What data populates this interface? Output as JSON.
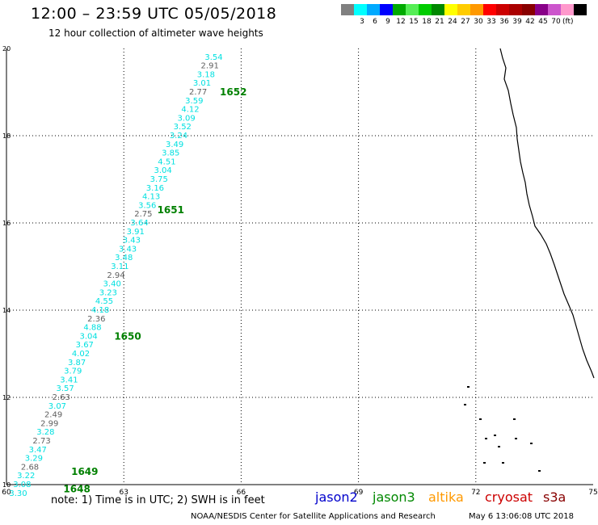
{
  "header": {
    "title": "12:00 – 23:59 UTC 05/05/2018",
    "subtitle": "12 hour collection of altimeter wave heights"
  },
  "legend": {
    "unit": "(ft)",
    "colors": [
      "#808080",
      "#00ffff",
      "#00aaff",
      "#0000ff",
      "#00aa00",
      "#55ee55",
      "#00cc00",
      "#008800",
      "#ffff00",
      "#ffcc00",
      "#ff9900",
      "#ff0000",
      "#cc0000",
      "#aa0000",
      "#880000",
      "#880088",
      "#cc55cc",
      "#ff99cc",
      "#000000"
    ],
    "labels": [
      "3",
      "6",
      "9",
      "12",
      "15",
      "18",
      "21",
      "24",
      "27",
      "30",
      "33",
      "36",
      "39",
      "42",
      "45",
      "70"
    ]
  },
  "chart_data": {
    "type": "scatter",
    "xlim": [
      60,
      75
    ],
    "ylim": [
      10,
      20
    ],
    "x_ticks": [
      "60",
      "63",
      "66",
      "69",
      "72",
      "75"
    ],
    "y_ticks": [
      "10",
      "12",
      "14",
      "16",
      "18",
      "20"
    ],
    "grid": true,
    "colors": {
      "cyan": "#00e0e0",
      "gray": "#606060",
      "track_label": "#008000"
    },
    "points": [
      {
        "x": 65.3,
        "y": 19.8,
        "v": "3.54",
        "c": "cyan"
      },
      {
        "x": 65.2,
        "y": 19.6,
        "v": "2.91",
        "c": "gray"
      },
      {
        "x": 65.1,
        "y": 19.4,
        "v": "3.18",
        "c": "cyan"
      },
      {
        "x": 65.0,
        "y": 19.2,
        "v": "3.01",
        "c": "cyan"
      },
      {
        "x": 64.9,
        "y": 19.0,
        "v": "2.77",
        "c": "gray"
      },
      {
        "x": 64.8,
        "y": 18.8,
        "v": "3.59",
        "c": "cyan"
      },
      {
        "x": 64.7,
        "y": 18.6,
        "v": "4.12",
        "c": "cyan"
      },
      {
        "x": 64.6,
        "y": 18.4,
        "v": "3.09",
        "c": "cyan"
      },
      {
        "x": 64.5,
        "y": 18.2,
        "v": "3.52",
        "c": "cyan"
      },
      {
        "x": 64.4,
        "y": 18.0,
        "v": "3.24",
        "c": "cyan"
      },
      {
        "x": 64.3,
        "y": 17.8,
        "v": "3.49",
        "c": "cyan"
      },
      {
        "x": 64.2,
        "y": 17.6,
        "v": "3.85",
        "c": "cyan"
      },
      {
        "x": 64.1,
        "y": 17.4,
        "v": "4.51",
        "c": "cyan"
      },
      {
        "x": 64.0,
        "y": 17.2,
        "v": "3.04",
        "c": "cyan"
      },
      {
        "x": 63.9,
        "y": 17.0,
        "v": "3.75",
        "c": "cyan"
      },
      {
        "x": 63.8,
        "y": 16.8,
        "v": "3.16",
        "c": "cyan"
      },
      {
        "x": 63.7,
        "y": 16.6,
        "v": "4.13",
        "c": "cyan"
      },
      {
        "x": 63.6,
        "y": 16.4,
        "v": "3.56",
        "c": "cyan"
      },
      {
        "x": 63.5,
        "y": 16.2,
        "v": "2.75",
        "c": "gray"
      },
      {
        "x": 63.4,
        "y": 16.0,
        "v": "3.64",
        "c": "cyan"
      },
      {
        "x": 63.3,
        "y": 15.8,
        "v": "3.91",
        "c": "cyan"
      },
      {
        "x": 63.2,
        "y": 15.6,
        "v": "3.43",
        "c": "cyan"
      },
      {
        "x": 63.1,
        "y": 15.4,
        "v": "3.43",
        "c": "cyan"
      },
      {
        "x": 63.0,
        "y": 15.2,
        "v": "3.48",
        "c": "cyan"
      },
      {
        "x": 62.9,
        "y": 15.0,
        "v": "3.11",
        "c": "cyan"
      },
      {
        "x": 62.8,
        "y": 14.8,
        "v": "2.94",
        "c": "gray"
      },
      {
        "x": 62.7,
        "y": 14.6,
        "v": "3.40",
        "c": "cyan"
      },
      {
        "x": 62.6,
        "y": 14.4,
        "v": "3.23",
        "c": "cyan"
      },
      {
        "x": 62.5,
        "y": 14.2,
        "v": "4.55",
        "c": "cyan"
      },
      {
        "x": 62.4,
        "y": 14.0,
        "v": "4.18",
        "c": "cyan"
      },
      {
        "x": 62.3,
        "y": 13.8,
        "v": "2.36",
        "c": "gray"
      },
      {
        "x": 62.2,
        "y": 13.6,
        "v": "4.88",
        "c": "cyan"
      },
      {
        "x": 62.1,
        "y": 13.4,
        "v": "3.04",
        "c": "cyan"
      },
      {
        "x": 62.0,
        "y": 13.2,
        "v": "3.67",
        "c": "cyan"
      },
      {
        "x": 61.9,
        "y": 13.0,
        "v": "4.02",
        "c": "cyan"
      },
      {
        "x": 61.8,
        "y": 12.8,
        "v": "3.87",
        "c": "cyan"
      },
      {
        "x": 61.7,
        "y": 12.6,
        "v": "3.79",
        "c": "cyan"
      },
      {
        "x": 61.6,
        "y": 12.4,
        "v": "3.41",
        "c": "cyan"
      },
      {
        "x": 61.5,
        "y": 12.2,
        "v": "3.57",
        "c": "cyan"
      },
      {
        "x": 61.4,
        "y": 12.0,
        "v": "2.63",
        "c": "gray"
      },
      {
        "x": 61.3,
        "y": 11.8,
        "v": "3.07",
        "c": "cyan"
      },
      {
        "x": 61.2,
        "y": 11.6,
        "v": "2.49",
        "c": "gray"
      },
      {
        "x": 61.1,
        "y": 11.4,
        "v": "2.99",
        "c": "gray"
      },
      {
        "x": 61.0,
        "y": 11.2,
        "v": "3.28",
        "c": "cyan"
      },
      {
        "x": 60.9,
        "y": 11.0,
        "v": "2.73",
        "c": "gray"
      },
      {
        "x": 60.8,
        "y": 10.8,
        "v": "3.47",
        "c": "cyan"
      },
      {
        "x": 60.7,
        "y": 10.6,
        "v": "3.29",
        "c": "cyan"
      },
      {
        "x": 60.6,
        "y": 10.4,
        "v": "2.68",
        "c": "gray"
      },
      {
        "x": 60.5,
        "y": 10.2,
        "v": "3.22",
        "c": "cyan"
      },
      {
        "x": 60.4,
        "y": 10.0,
        "v": "3.08",
        "c": "cyan"
      },
      {
        "x": 60.3,
        "y": 9.8,
        "v": "3.30",
        "c": "cyan"
      }
    ],
    "track_labels": [
      {
        "x": 65.8,
        "y": 19.0,
        "v": "1652"
      },
      {
        "x": 64.2,
        "y": 16.3,
        "v": "1651"
      },
      {
        "x": 63.1,
        "y": 13.4,
        "v": "1650"
      },
      {
        "x": 62.0,
        "y": 10.3,
        "v": "1649"
      },
      {
        "x": 61.8,
        "y": 9.9,
        "v": "1648"
      }
    ]
  },
  "footer": {
    "note": "note:  1) Time is in UTC;  2) SWH is in feet",
    "satellites": [
      {
        "name": "jason2",
        "color": "#0000cc"
      },
      {
        "name": "jason3",
        "color": "#008800"
      },
      {
        "name": "altika",
        "color": "#ff9900"
      },
      {
        "name": "cryosat",
        "color": "#cc0000"
      },
      {
        "name": "s3a",
        "color": "#880000"
      }
    ],
    "credit": "NOAA/NESDIS Center for Satellite Applications and Research",
    "timestamp": "May  6 13:06:08 UTC 2018"
  }
}
